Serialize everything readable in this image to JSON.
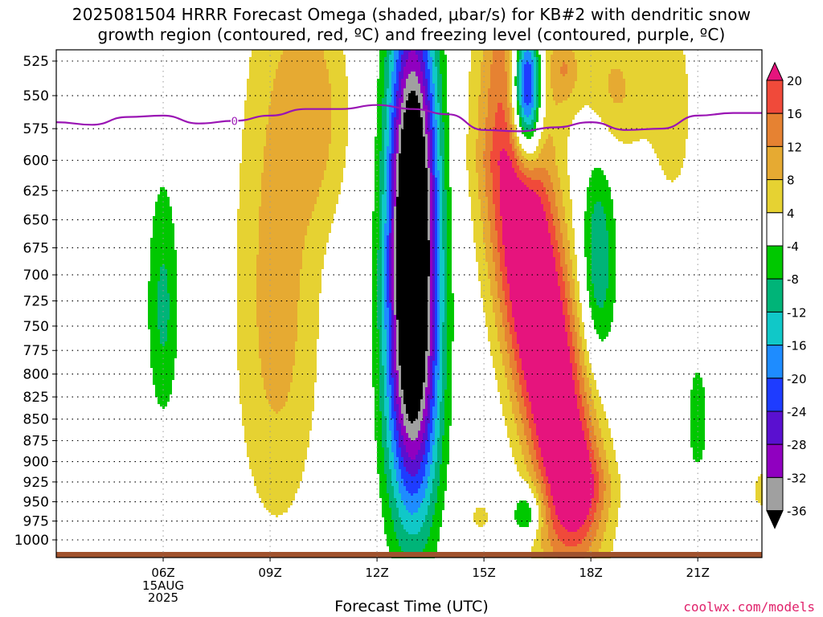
{
  "title": {
    "line1": "2025081504 HRRR Forecast Omega (shaded, μbar/s) for KB#2 with dendritic snow",
    "line2": "growth region (contoured, red, ºC) and freezing level (contoured, purple, ºC)"
  },
  "footer": {
    "xlabel": "Forecast Time (UTC)",
    "credit": "coolwx.com/models"
  },
  "chart_data": {
    "type": "heatmap",
    "variable": "Omega",
    "units": "μbar/s",
    "y_axis": {
      "reversed": true,
      "ticks": [
        525,
        550,
        575,
        600,
        625,
        650,
        675,
        700,
        725,
        750,
        775,
        800,
        825,
        850,
        875,
        900,
        925,
        950,
        975,
        1000
      ]
    },
    "x_axis": {
      "ticks": [
        {
          "t": 6,
          "label": "06Z",
          "sub": [
            "15AUG",
            "2025"
          ]
        },
        {
          "t": 9,
          "label": "09Z"
        },
        {
          "t": 12,
          "label": "12Z"
        },
        {
          "t": 15,
          "label": "15Z"
        },
        {
          "t": 18,
          "label": "18Z"
        },
        {
          "t": 21,
          "label": "21Z"
        }
      ],
      "xlim": [
        3,
        22.8
      ]
    },
    "grid": true,
    "colorbar": {
      "levels": [
        -36,
        -32,
        -28,
        -24,
        -20,
        -16,
        -12,
        -8,
        -4,
        4,
        8,
        12,
        16,
        20
      ],
      "colors": [
        "#000000",
        "#a0a0a0",
        "#9000c0",
        "#5a10d0",
        "#1e3cff",
        "#1e8cff",
        "#10c8c8",
        "#00b478",
        "#00c800",
        "#ffffff",
        "#e6d232",
        "#e6aa32",
        "#e68232",
        "#f04a3a",
        "#e6147d"
      ]
    },
    "freezing_level": {
      "label": "0",
      "color": "#9a14b4",
      "points": [
        [
          3,
          570
        ],
        [
          4,
          572
        ],
        [
          5,
          566
        ],
        [
          6,
          565
        ],
        [
          7,
          571
        ],
        [
          8,
          569
        ],
        [
          9,
          565
        ],
        [
          10,
          560
        ],
        [
          11,
          560
        ],
        [
          12,
          557
        ],
        [
          13,
          560
        ],
        [
          14,
          564
        ],
        [
          15,
          576
        ],
        [
          16,
          577
        ],
        [
          17,
          574
        ],
        [
          18,
          570
        ],
        [
          19,
          576
        ],
        [
          20,
          575
        ],
        [
          21,
          565
        ],
        [
          22,
          563
        ],
        [
          22.8,
          563
        ]
      ]
    },
    "snow_growth_region": "not present",
    "ground_color": "#a0522d"
  }
}
